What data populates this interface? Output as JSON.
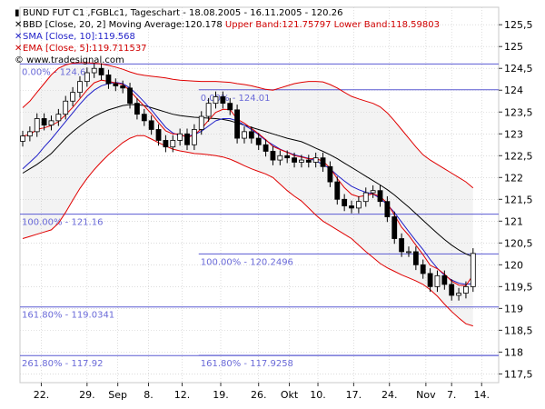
{
  "header": {
    "line1": "BUND FUT C1 ,FGBLc1, Tageschart - 18.08.2005 - 16.11.2005 - 120.26",
    "bb_label": "BBD [Close, 20, 2] Moving Average:120.178",
    "bb_upper": "Upper Band:121.75797",
    "bb_lower": "Lower Band:118.59803",
    "sma_label": "SMA [Close, 10]:119.568",
    "ema_label": "EMA [Close, 5]:119.711537",
    "website": "© www.tradesignal.com"
  },
  "colors": {
    "candle": "#000000",
    "ma20": "#000000",
    "bands": "#e00000",
    "sma": "#1f1fc8",
    "ema": "#e00000",
    "fib_line": "#5a5ad2",
    "fib_text": "#6a6ad8",
    "grid": "#c8c8c8",
    "band_fill": "#f3f3f3"
  },
  "chart_data": {
    "type": "candlestick",
    "x_tick_labels": [
      "22.",
      "29.",
      "Sep",
      "8.",
      "12.",
      "19.",
      "26.",
      "Okt",
      "10.",
      "17.",
      "24.",
      "Nov",
      "7.",
      "14."
    ],
    "y_tick_labels": [
      "125,5",
      "125",
      "124,5",
      "124",
      "123,5",
      "123",
      "122,5",
      "122",
      "121,5",
      "121",
      "120,5",
      "120",
      "119,5",
      "119",
      "118,5",
      "118",
      "117,5"
    ],
    "ylim": [
      117.3,
      125.9
    ],
    "num_bars": 64,
    "fibonacci": [
      {
        "label": "0.00% - 124.6",
        "value": 124.6,
        "from_bar": 0
      },
      {
        "label": "100.00% - 121.16",
        "value": 121.16,
        "from_bar": 0
      },
      {
        "label": "161.80% - 119.0341",
        "value": 119.0341,
        "from_bar": 0
      },
      {
        "label": "261.80% - 117.92",
        "value": 117.92,
        "from_bar": 0
      },
      {
        "label": "0.00% - 124.01",
        "value": 124.01,
        "from_bar": 25
      },
      {
        "label": "100.00% - 120.2496",
        "value": 120.2496,
        "from_bar": 25
      },
      {
        "label": "161.80% - 117.9258",
        "value": 117.9258,
        "from_bar": 25
      }
    ],
    "close": [
      122.95,
      123.05,
      123.35,
      123.2,
      123.3,
      123.45,
      123.75,
      123.95,
      124.2,
      124.4,
      124.5,
      124.35,
      124.15,
      124.1,
      124.05,
      123.7,
      123.45,
      123.3,
      123.1,
      122.85,
      122.7,
      122.85,
      123.0,
      122.75,
      123.1,
      123.4,
      123.7,
      123.85,
      123.7,
      123.55,
      122.9,
      123.05,
      122.9,
      122.75,
      122.6,
      122.4,
      122.5,
      122.45,
      122.35,
      122.4,
      122.35,
      122.45,
      122.25,
      121.9,
      121.5,
      121.35,
      121.3,
      121.45,
      121.65,
      121.7,
      121.45,
      121.1,
      120.6,
      120.3,
      120.3,
      120.0,
      119.8,
      119.5,
      119.75,
      119.55,
      119.3,
      119.35,
      119.5,
      120.26
    ],
    "ma20": [
      122.1,
      122.2,
      122.3,
      122.42,
      122.55,
      122.72,
      122.9,
      123.05,
      123.18,
      123.3,
      123.4,
      123.48,
      123.55,
      123.6,
      123.65,
      123.67,
      123.67,
      123.65,
      123.6,
      123.55,
      123.5,
      123.45,
      123.42,
      123.4,
      123.38,
      123.37,
      123.36,
      123.35,
      123.33,
      123.3,
      123.25,
      123.2,
      123.15,
      123.1,
      123.05,
      123.0,
      122.95,
      122.9,
      122.86,
      122.82,
      122.75,
      122.67,
      122.6,
      122.52,
      122.43,
      122.33,
      122.23,
      122.13,
      122.03,
      121.93,
      121.83,
      121.72,
      121.6,
      121.46,
      121.32,
      121.17,
      121.02,
      120.87,
      120.72,
      120.58,
      120.45,
      120.34,
      120.25,
      120.18
    ],
    "upper_band": [
      123.6,
      123.75,
      123.95,
      124.15,
      124.35,
      124.5,
      124.58,
      124.62,
      124.63,
      124.63,
      124.62,
      124.6,
      124.57,
      124.53,
      124.48,
      124.42,
      124.37,
      124.34,
      124.32,
      124.3,
      124.28,
      124.25,
      124.23,
      124.22,
      124.21,
      124.2,
      124.2,
      124.2,
      124.19,
      124.18,
      124.15,
      124.13,
      124.1,
      124.06,
      124.02,
      124.0,
      124.05,
      124.1,
      124.15,
      124.18,
      124.2,
      124.2,
      124.19,
      124.13,
      124.05,
      123.95,
      123.86,
      123.8,
      123.75,
      123.7,
      123.62,
      123.48,
      123.3,
      123.1,
      122.9,
      122.7,
      122.52,
      122.4,
      122.3,
      122.2,
      122.1,
      122.0,
      121.9,
      121.76
    ],
    "lower_band": [
      120.6,
      120.65,
      120.7,
      120.75,
      120.8,
      120.95,
      121.2,
      121.48,
      121.75,
      121.98,
      122.18,
      122.36,
      122.52,
      122.66,
      122.8,
      122.9,
      122.96,
      122.96,
      122.88,
      122.8,
      122.72,
      122.65,
      122.61,
      122.58,
      122.55,
      122.54,
      122.52,
      122.5,
      122.47,
      122.42,
      122.35,
      122.27,
      122.2,
      122.14,
      122.08,
      122.0,
      121.85,
      121.7,
      121.57,
      121.46,
      121.3,
      121.14,
      121.0,
      120.9,
      120.8,
      120.7,
      120.6,
      120.45,
      120.3,
      120.17,
      120.03,
      119.93,
      119.85,
      119.77,
      119.7,
      119.63,
      119.55,
      119.43,
      119.28,
      119.1,
      118.93,
      118.78,
      118.65,
      118.6
    ],
    "sma10": [
      122.2,
      122.35,
      122.5,
      122.7,
      122.88,
      123.08,
      123.28,
      123.48,
      123.68,
      123.86,
      124.0,
      124.1,
      124.15,
      124.18,
      124.15,
      124.05,
      123.9,
      123.73,
      123.55,
      123.35,
      123.15,
      123.02,
      122.96,
      122.95,
      122.98,
      123.06,
      123.18,
      123.3,
      123.35,
      123.35,
      123.3,
      123.2,
      123.1,
      122.98,
      122.85,
      122.75,
      122.65,
      122.58,
      122.52,
      122.48,
      122.44,
      122.38,
      122.3,
      122.2,
      122.05,
      121.92,
      121.8,
      121.72,
      121.66,
      121.62,
      121.52,
      121.38,
      121.2,
      120.98,
      120.76,
      120.55,
      120.35,
      120.12,
      119.92,
      119.76,
      119.65,
      119.58,
      119.55,
      119.57
    ]
  }
}
